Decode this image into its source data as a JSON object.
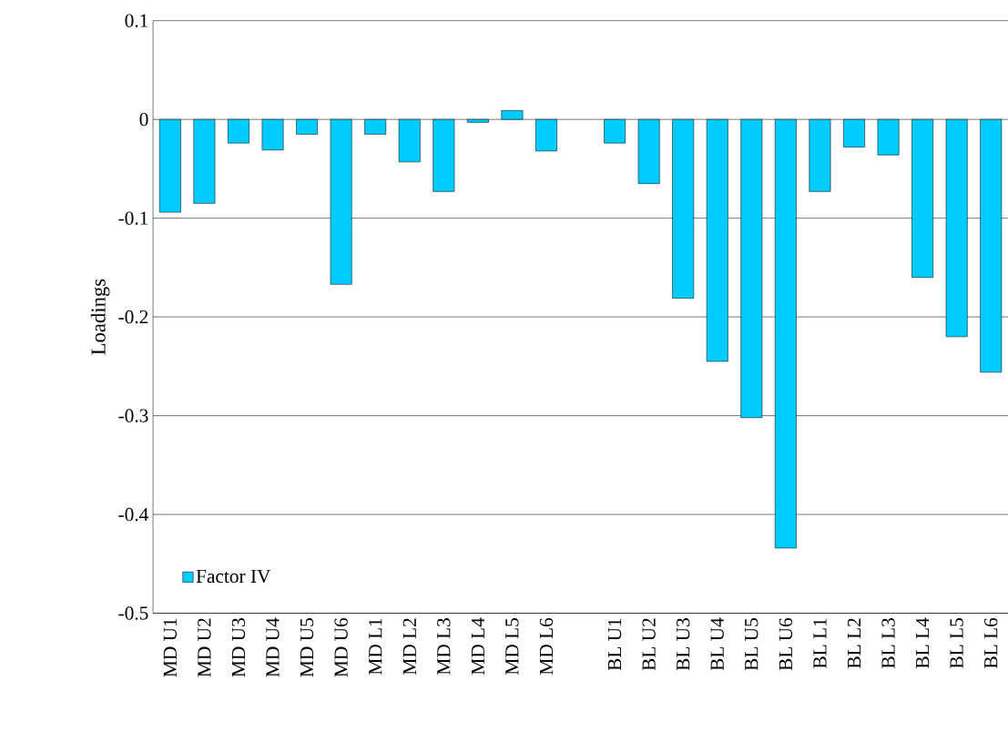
{
  "chart_data": {
    "type": "bar",
    "ylabel": "Loadings",
    "categories": [
      "MD U1",
      "MD U2",
      "MD U3",
      "MD U4",
      "MD U5",
      "MD U6",
      "MD L1",
      "MD L2",
      "MD L3",
      "MD L4",
      "MD L5",
      "MD L6",
      null,
      "BL U1",
      "BL U2",
      "BL U3",
      "BL U4",
      "BL U5",
      "BL U6",
      "BL L1",
      "BL L2",
      "BL L3",
      "BL L4",
      "BL L5",
      "BL L6"
    ],
    "series": [
      {
        "name": "Factor IV",
        "color": "#00ccff",
        "values": [
          -0.094,
          -0.085,
          -0.024,
          -0.031,
          -0.015,
          -0.167,
          -0.015,
          -0.043,
          -0.073,
          -0.003,
          0.009,
          -0.032,
          null,
          -0.024,
          -0.065,
          -0.181,
          -0.245,
          -0.302,
          -0.434,
          -0.073,
          -0.028,
          -0.036,
          -0.16,
          -0.22,
          -0.256
        ]
      }
    ],
    "ylim": [
      -0.5,
      0.1
    ],
    "yticks": [
      0.1,
      0,
      -0.1,
      -0.2,
      -0.3,
      -0.4,
      -0.5
    ],
    "grid": "y",
    "legend": "bottom left"
  }
}
